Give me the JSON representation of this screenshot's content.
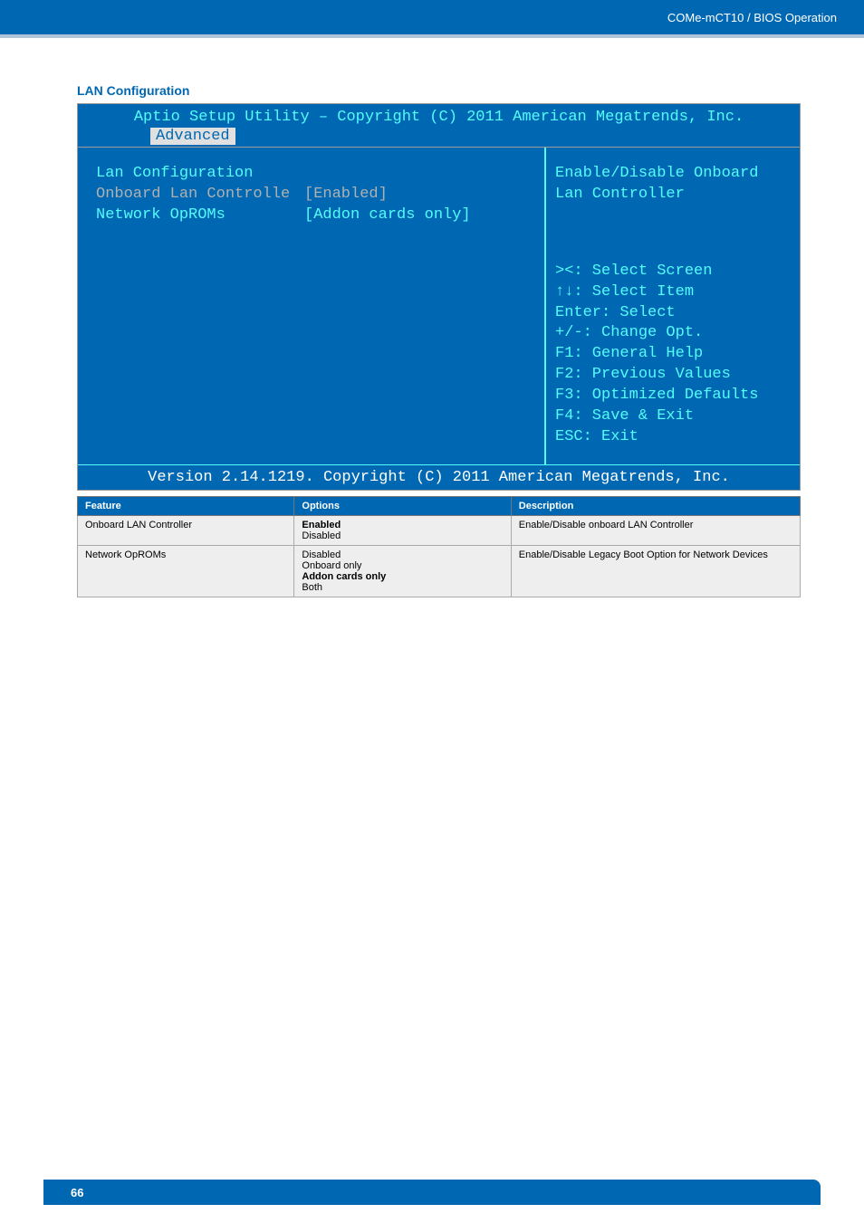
{
  "header": {
    "breadcrumb": "COMe-mCT10 / BIOS Operation"
  },
  "page": {
    "section_title": "LAN Configuration",
    "page_number": "66"
  },
  "bios": {
    "title": "Aptio Setup Utility – Copyright (C) 2011 American Megatrends, Inc.",
    "tab": "Advanced",
    "left": {
      "heading": "Lan Configuration",
      "row1_label": "Onboard Lan Controlle",
      "row1_value": "[Enabled]",
      "row2_label": "Network OpROMs",
      "row2_value": "[Addon cards only]"
    },
    "right": {
      "help_text": "Enable/Disable Onboard Lan Controller",
      "keys": [
        "><: Select Screen",
        "↑↓: Select Item",
        "Enter: Select",
        "+/-: Change Opt.",
        "F1: General Help",
        "F2: Previous Values",
        "F3: Optimized Defaults",
        "F4: Save & Exit",
        "ESC: Exit"
      ]
    },
    "footer": "Version 2.14.1219. Copyright (C) 2011 American Megatrends, Inc."
  },
  "table": {
    "headers": [
      "Feature",
      "Options",
      "Description"
    ],
    "rows": [
      {
        "feature": "Onboard LAN Controller",
        "options": [
          {
            "text": "Enabled",
            "bold": true
          },
          {
            "text": "Disabled",
            "bold": false
          }
        ],
        "description": "Enable/Disable onboard LAN Controller"
      },
      {
        "feature": "Network OpROMs",
        "options": [
          {
            "text": "Disabled",
            "bold": false
          },
          {
            "text": "Onboard only",
            "bold": false
          },
          {
            "text": "Addon cards only",
            "bold": true
          },
          {
            "text": "Both",
            "bold": false
          }
        ],
        "description": "Enable/Disable Legacy Boot Option for Network Devices"
      }
    ]
  }
}
